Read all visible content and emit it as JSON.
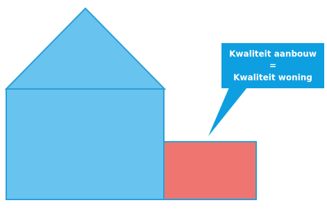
{
  "callout": {
    "lines": [
      "Kwaliteit aanbouw",
      "=",
      "Kwaliteit woning"
    ]
  }
}
